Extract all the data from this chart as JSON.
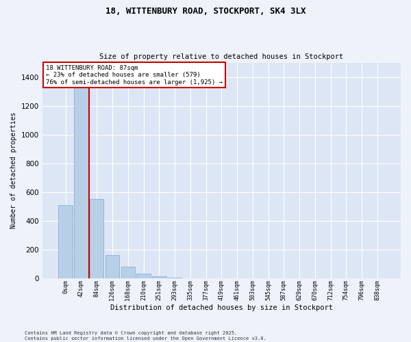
{
  "title": "18, WITTENBURY ROAD, STOCKPORT, SK4 3LX",
  "subtitle": "Size of property relative to detached houses in Stockport",
  "xlabel": "Distribution of detached houses by size in Stockport",
  "ylabel": "Number of detached properties",
  "footer_line1": "Contains HM Land Registry data © Crown copyright and database right 2025.",
  "footer_line2": "Contains public sector information licensed under the Open Government Licence v3.0.",
  "property_label": "18 WITTENBURY ROAD: 87sqm",
  "annotation_line2": "← 23% of detached houses are smaller (579)",
  "annotation_line3": "76% of semi-detached houses are larger (1,925) →",
  "bar_color": "#b8cfe8",
  "bar_edge_color": "#7aa8d0",
  "vline_color": "#cc0000",
  "annotation_box_edgecolor": "#cc0000",
  "background_color": "#eef2fb",
  "plot_bg_color": "#dde6f5",
  "grid_color": "#ffffff",
  "categories": [
    "0sqm",
    "42sqm",
    "84sqm",
    "126sqm",
    "168sqm",
    "210sqm",
    "251sqm",
    "293sqm",
    "335sqm",
    "377sqm",
    "419sqm",
    "461sqm",
    "503sqm",
    "545sqm",
    "587sqm",
    "629sqm",
    "670sqm",
    "712sqm",
    "754sqm",
    "796sqm",
    "838sqm"
  ],
  "bar_values": [
    510,
    1370,
    550,
    160,
    80,
    30,
    15,
    5,
    0,
    0,
    0,
    0,
    0,
    0,
    0,
    0,
    0,
    0,
    0,
    0,
    0
  ],
  "ylim": [
    0,
    1500
  ],
  "yticks": [
    0,
    200,
    400,
    600,
    800,
    1000,
    1200,
    1400
  ],
  "vline_pos": 1.5
}
